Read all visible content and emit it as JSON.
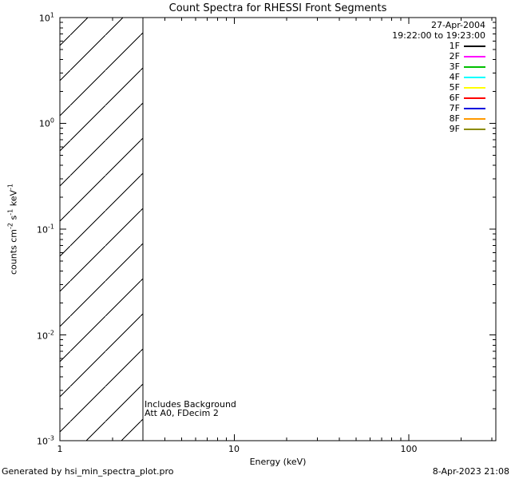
{
  "chart_data": {
    "type": "line",
    "title": "Count Spectra for RHESSI Front Segments",
    "xlabel": "Energy (keV)",
    "ylabel": "counts cm^-2 s^-1 keV^-1",
    "ylabel_parts": {
      "p1": "counts cm",
      "s1": "-2",
      "p2": " s",
      "s2": "-1",
      "p3": " keV",
      "s3": "-1"
    },
    "x_scale": "log",
    "y_scale": "log",
    "xlim": [
      1,
      316
    ],
    "ylim": [
      0.001,
      10
    ],
    "grid": false,
    "x_ticks": {
      "values": [
        1,
        10,
        100
      ],
      "labels": [
        "1",
        "10",
        "100"
      ]
    },
    "y_ticks": {
      "base": "10",
      "values": [
        10,
        1,
        0.1,
        0.01,
        0.001
      ],
      "exponents": [
        "1",
        "0",
        "-1",
        "-2",
        "-3"
      ]
    },
    "hatched_region": {
      "x_min": 1,
      "x_max": 3,
      "style": "diagonal-hatch",
      "note": "hatched low-energy region spanning full y-range with solid vertical line at right boundary"
    },
    "series": [],
    "series_note": "no spectral data curves are visible within the plotted range; only the hatched region is drawn",
    "legend_position": "top-right",
    "legend": {
      "date": "27-Apr-2004",
      "time_range": "19:22:00 to 19:23:00",
      "entries": [
        {
          "label": "1F",
          "color": "#000000"
        },
        {
          "label": "2F",
          "color": "#ff00ff"
        },
        {
          "label": "3F",
          "color": "#00c000"
        },
        {
          "label": "4F",
          "color": "#00ffff"
        },
        {
          "label": "5F",
          "color": "#ffff00"
        },
        {
          "label": "6F",
          "color": "#ff0000"
        },
        {
          "label": "7F",
          "color": "#0000dd"
        },
        {
          "label": "8F",
          "color": "#ff9900"
        },
        {
          "label": "9F",
          "color": "#8b8b00"
        }
      ]
    },
    "annotations": [
      "Includes Background",
      "Att A0, FDecim 2"
    ]
  },
  "footer": {
    "left": "Generated by hsi_min_spectra_plot.pro",
    "right": "8-Apr-2023 21:08"
  }
}
